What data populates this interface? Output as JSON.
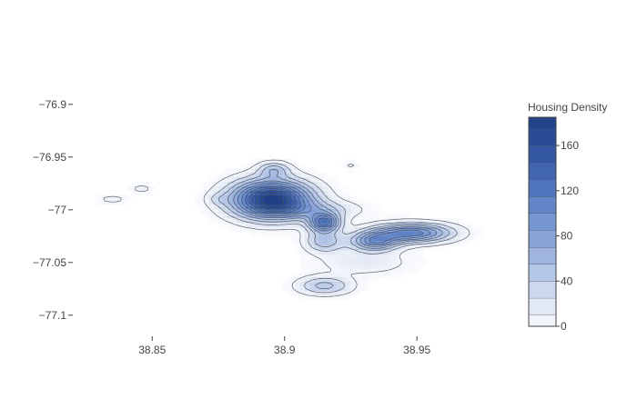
{
  "chart_data": {
    "type": "contour",
    "title": "",
    "xlabel": "",
    "ylabel": "",
    "x_ticks": [
      38.85,
      38.9,
      38.95
    ],
    "y_ticks": [
      -76.9,
      -76.95,
      -77,
      -77.05,
      -77.1
    ],
    "x_range": [
      38.82,
      38.985
    ],
    "y_range": [
      -77.12,
      -76.87
    ],
    "colorbar": {
      "title": "Housing Density",
      "ticks": [
        0,
        40,
        80,
        120,
        160
      ],
      "range": [
        0,
        185
      ],
      "low_color": "#f7f9fd",
      "high_color": "#1f3f86"
    },
    "contour_levels": [
      10,
      25,
      40,
      55,
      70,
      85,
      100,
      115,
      130,
      145,
      160,
      175
    ],
    "density_peaks": [
      {
        "x": 38.895,
        "y": -76.99,
        "value": 185,
        "sx": 0.01,
        "sy": 0.012
      },
      {
        "x": 38.896,
        "y": -76.962,
        "value": 45,
        "sx": 0.004,
        "sy": 0.005
      },
      {
        "x": 38.915,
        "y": -77.012,
        "value": 120,
        "sx": 0.004,
        "sy": 0.006
      },
      {
        "x": 38.915,
        "y": -77.03,
        "value": 50,
        "sx": 0.005,
        "sy": 0.007
      },
      {
        "x": 38.934,
        "y": -77.03,
        "value": 90,
        "sx": 0.006,
        "sy": 0.006
      },
      {
        "x": 38.948,
        "y": -77.022,
        "value": 110,
        "sx": 0.01,
        "sy": 0.006
      },
      {
        "x": 38.915,
        "y": -77.072,
        "value": 45,
        "sx": 0.007,
        "sy": 0.006
      },
      {
        "x": 38.835,
        "y": -76.99,
        "value": 15,
        "sx": 0.004,
        "sy": 0.003
      },
      {
        "x": 38.846,
        "y": -76.98,
        "value": 15,
        "sx": 0.003,
        "sy": 0.003
      },
      {
        "x": 38.925,
        "y": -76.958,
        "value": 12,
        "sx": 0.002,
        "sy": 0.003
      },
      {
        "x": 38.875,
        "y": -76.99,
        "value": 15,
        "sx": 0.003,
        "sy": 0.004
      },
      {
        "x": 38.91,
        "y": -77.0,
        "value": 35,
        "sx": 0.012,
        "sy": 0.006
      },
      {
        "x": 38.93,
        "y": -77.05,
        "value": 20,
        "sx": 0.012,
        "sy": 0.008
      }
    ],
    "color_scale": [
      "#f7f9fd",
      "#dfe6f3",
      "#bfcee9",
      "#a0b6df",
      "#82a0d6",
      "#6a8ccd",
      "#4f74bd",
      "#3a5fa8",
      "#2b4e98",
      "#1f3f86"
    ]
  }
}
